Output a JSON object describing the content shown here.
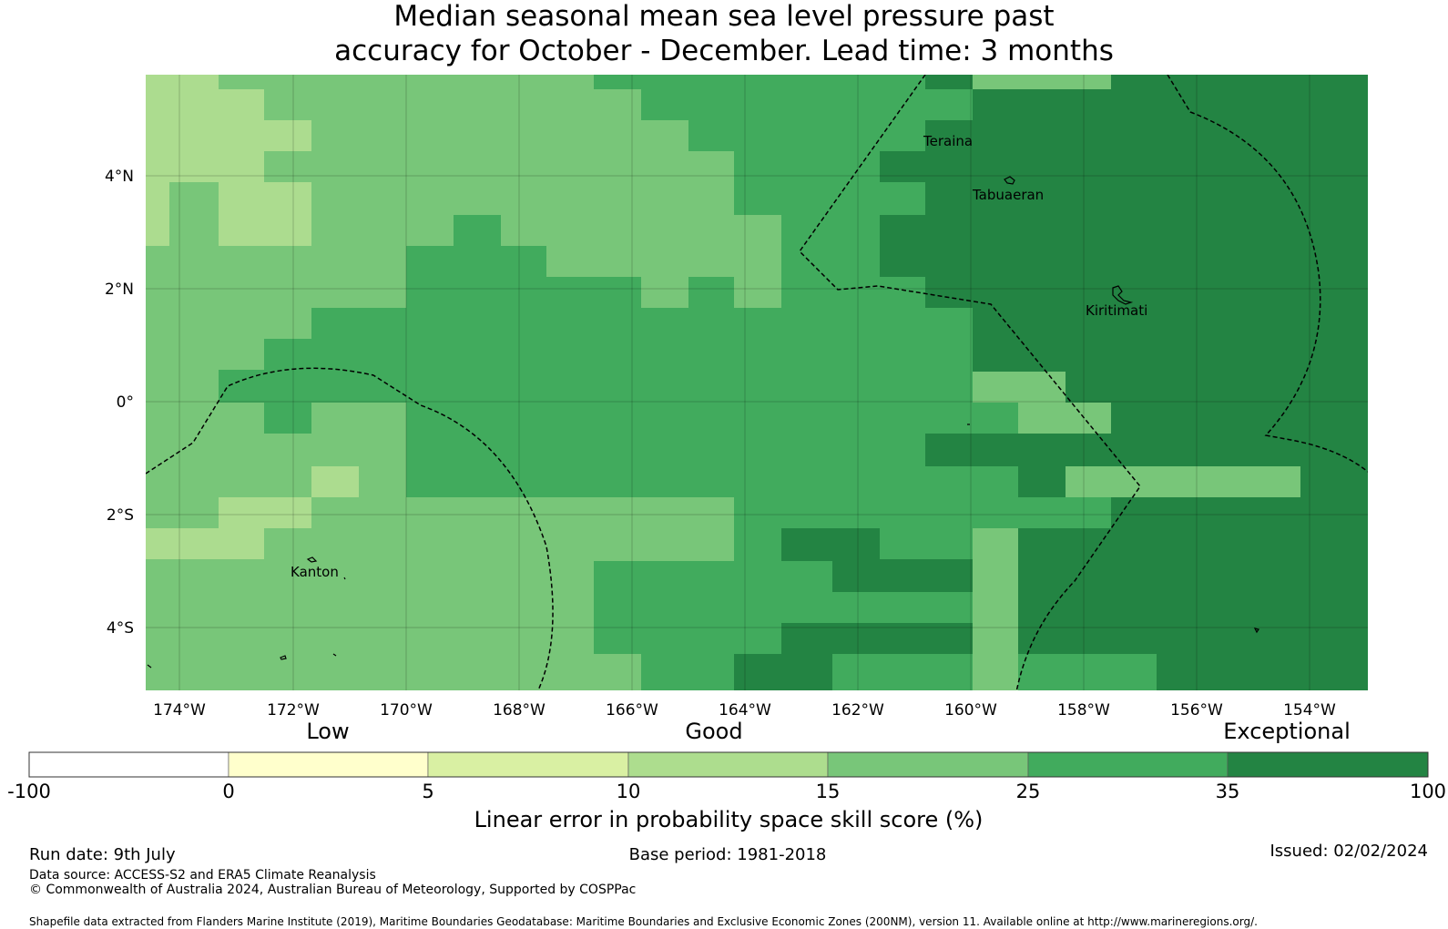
{
  "title": {
    "line1": "Median seasonal mean sea level pressure past",
    "line2": "accuracy for October - December. Lead time: 3 months"
  },
  "map": {
    "lon_ticks": [
      "174°W",
      "172°W",
      "170°W",
      "168°W",
      "166°W",
      "164°W",
      "162°W",
      "160°W",
      "158°W",
      "156°W",
      "154°W"
    ],
    "lat_ticks": [
      "4°N",
      "2°N",
      "0°",
      "2°S",
      "4°S"
    ],
    "places": [
      "Teraina",
      "Tabuaeran",
      "Kiritimati",
      "Kanton"
    ],
    "colors": {
      "c10_15": "#acdc8f",
      "c15_25": "#78c679",
      "c25_35": "#41ab5d",
      "c35_100": "#238443"
    }
  },
  "colorbar": {
    "categories": [
      "Low",
      "Good",
      "Exceptional"
    ],
    "ticks": [
      "-100",
      "0",
      "5",
      "10",
      "15",
      "25",
      "35",
      "100"
    ],
    "colors": [
      "#ffffff",
      "#ffffcc",
      "#d9f0a3",
      "#addd8e",
      "#78c679",
      "#41ab5d",
      "#238443"
    ],
    "label": "Linear error in probability space skill score (%)"
  },
  "footer": {
    "run_date": "Run date: 9th July",
    "base_period": "Base period: 1981-2018",
    "issued": "Issued: 02/02/2024",
    "data_source": "Data source: ACCESS-S2 and ERA5 Climate Reanalysis",
    "copyright": "© Commonwealth of Australia 2024, Australian Bureau of Meteorology, Supported by COSPPac",
    "shapefile": "Shapefile data extracted from Flanders Marine Institute (2019), Maritime Boundaries Geodatabase: Maritime Boundaries and Exclusive Economic Zones (200NM), version 11. Available online at http://www.marineregions.org/."
  }
}
